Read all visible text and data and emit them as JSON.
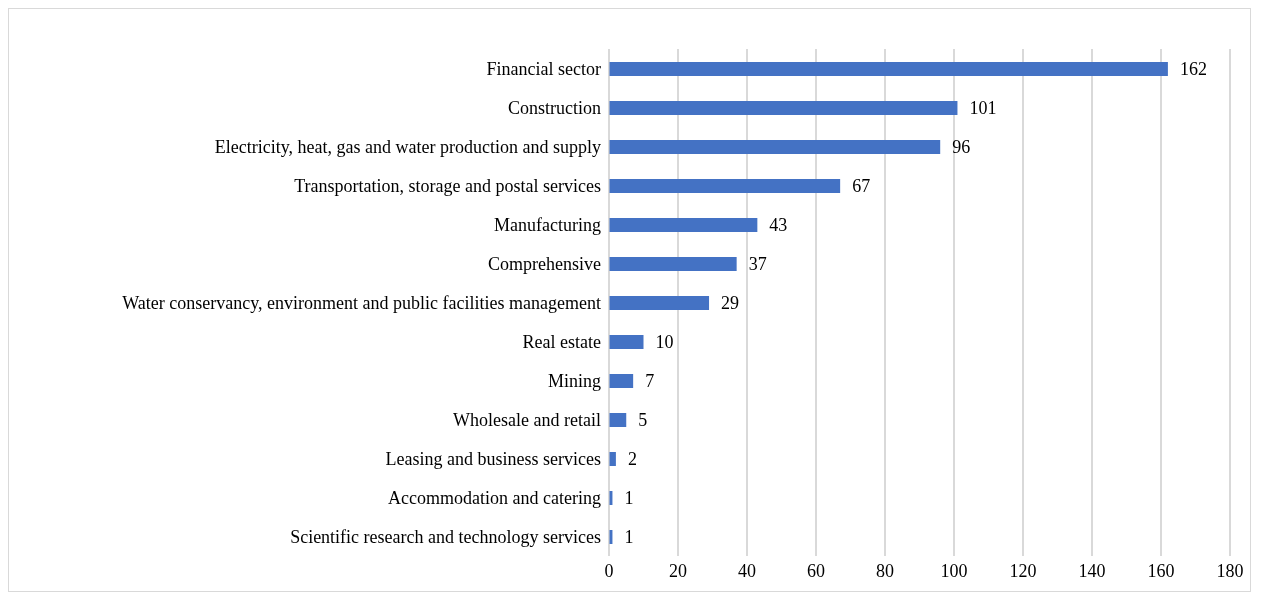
{
  "chart_data": {
    "type": "bar",
    "orientation": "horizontal",
    "categories": [
      "Financial sector",
      "Construction",
      "Electricity, heat, gas and water production and supply",
      "Transportation, storage and postal services",
      "Manufacturing",
      "Comprehensive",
      "Water conservancy, environment and public facilities management",
      "Real estate",
      "Mining",
      "Wholesale and retail",
      "Leasing and business services",
      "Accommodation and catering",
      "Scientific research and technology services"
    ],
    "values": [
      162,
      101,
      96,
      67,
      43,
      37,
      29,
      10,
      7,
      5,
      2,
      1,
      1
    ],
    "color": "#4472c4",
    "xlim": [
      0,
      180
    ],
    "xticks": [
      0,
      20,
      40,
      60,
      80,
      100,
      120,
      140,
      160,
      180
    ],
    "grid": "x",
    "data_labels": true
  }
}
